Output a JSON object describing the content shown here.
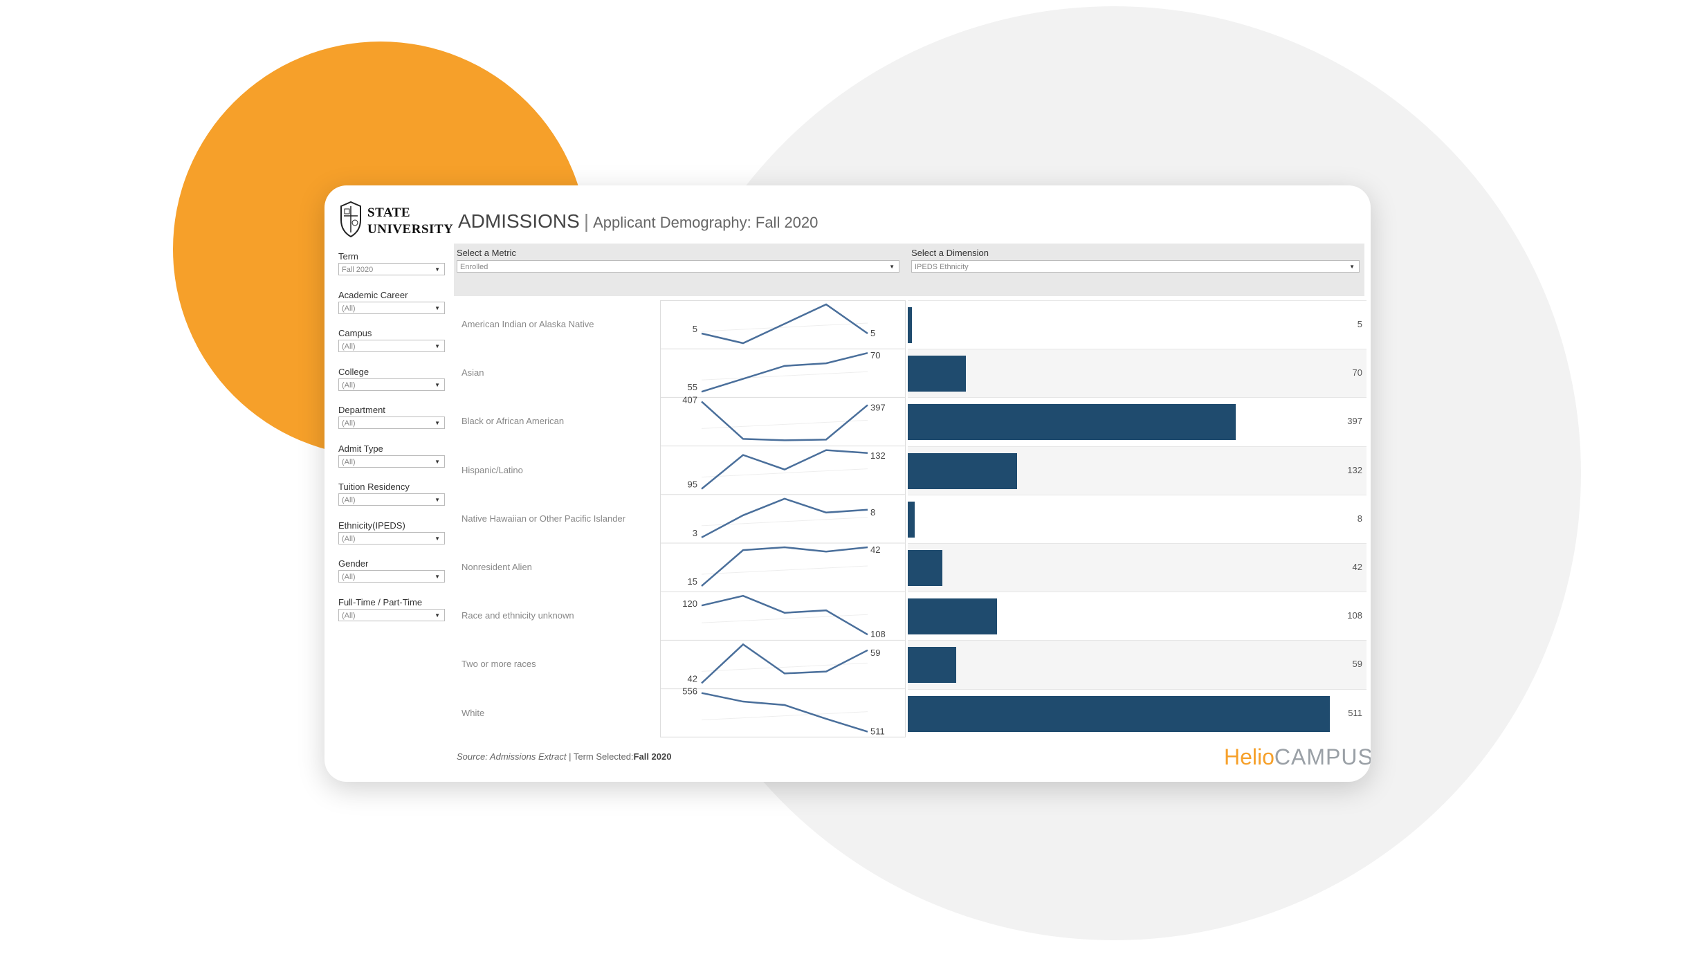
{
  "logo": {
    "line1": "STATE",
    "line2": "UNIVERSITY"
  },
  "header": {
    "title": "ADMISSIONS",
    "separator": "|",
    "subtitle": "Applicant Demography: Fall 2020"
  },
  "filters": [
    {
      "label": "Term",
      "value": "Fall 2020"
    },
    {
      "label": "Academic Career",
      "value": "(All)"
    },
    {
      "label": "Campus",
      "value": "(All)"
    },
    {
      "label": "College",
      "value": "(All)"
    },
    {
      "label": "Department",
      "value": "(All)"
    },
    {
      "label": "Admit Type",
      "value": "(All)"
    },
    {
      "label": "Tuition Residency",
      "value": "(All)"
    },
    {
      "label": "Ethnicity(IPEDS)",
      "value": "(All)"
    },
    {
      "label": "Gender",
      "value": "(All)"
    },
    {
      "label": "Full-Time / Part-Time",
      "value": "(All)"
    }
  ],
  "metric": {
    "label": "Select a Metric",
    "value": "Enrolled"
  },
  "dimension": {
    "label": "Select a Dimension",
    "value": "IPEDS Ethnicity"
  },
  "chart_data": {
    "type": "bar",
    "title": "Applicant Demography: Fall 2020",
    "metric": "Enrolled",
    "categories": [
      "American Indian or Alaska Native",
      "Asian",
      "Black or African American",
      "Hispanic/Latino",
      "Native Hawaiian or Other Pacific Islander",
      "Nonresident Alien",
      "Race and ethnicity unknown",
      "Two or more races",
      "White"
    ],
    "values": [
      5,
      70,
      397,
      132,
      8,
      42,
      108,
      59,
      511
    ],
    "sparklines": [
      {
        "start_label": "5",
        "end_label": "5",
        "trend": [
          5,
          4,
          6,
          8,
          5
        ]
      },
      {
        "start_label": "55",
        "end_label": "70",
        "trend": [
          55,
          60,
          65,
          66,
          70
        ]
      },
      {
        "start_label": "407",
        "end_label": "397",
        "trend": [
          407,
          300,
          296,
          298,
          397
        ]
      },
      {
        "start_label": "95",
        "end_label": "132",
        "trend": [
          95,
          130,
          115,
          135,
          132
        ]
      },
      {
        "start_label": "3",
        "end_label": "8",
        "trend": [
          3,
          7,
          10,
          7.5,
          8
        ]
      },
      {
        "start_label": "15",
        "end_label": "42",
        "trend": [
          15,
          40,
          42,
          39,
          42
        ]
      },
      {
        "start_label": "120",
        "end_label": "108",
        "trend": [
          120,
          124,
          117,
          118,
          108
        ]
      },
      {
        "start_label": "42",
        "end_label": "59",
        "trend": [
          42,
          62,
          47,
          48,
          59
        ]
      },
      {
        "start_label": "556",
        "end_label": "511",
        "trend": [
          556,
          546,
          542,
          526,
          511
        ]
      }
    ],
    "xlabel": "",
    "ylabel": ""
  },
  "footer": {
    "source": "Source: Admissions Extract",
    "sep": " | ",
    "term_label": "Term Selected:",
    "term_value": "Fall 2020"
  },
  "brand": {
    "part1": "Helio",
    "part2": "CAMPUS"
  },
  "colors": {
    "accent_orange": "#F6A02A",
    "bar": "#1F4B6E",
    "line": "#4A6F9B"
  }
}
